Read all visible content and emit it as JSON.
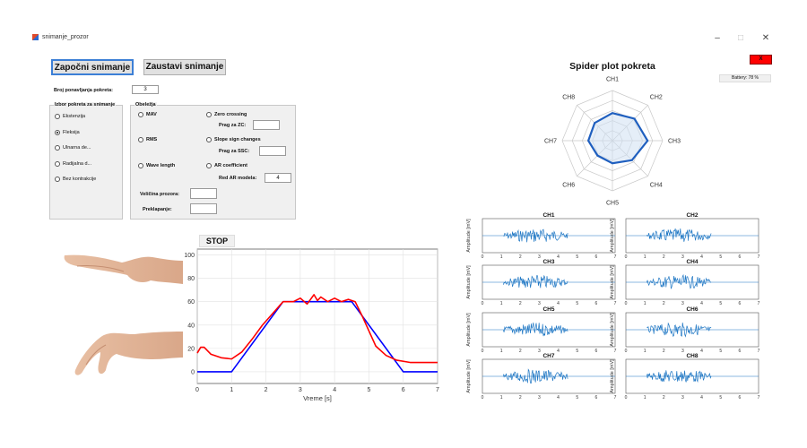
{
  "window": {
    "title": "snimanje_prozor",
    "minimize": "–",
    "maximize": "□",
    "close": "✕"
  },
  "toolbar": {
    "start_label": "Započni snimanje",
    "stop_label": "Zaustavi snimanje"
  },
  "repetitions": {
    "label": "Broj ponavljanja pokreta:",
    "value": "3"
  },
  "movement_panel": {
    "title": "Izbor pokreta za snimanje",
    "options": [
      {
        "label": "Ekstenzija",
        "selected": false
      },
      {
        "label": "Fleksija",
        "selected": true
      },
      {
        "label": "Ulnarna de...",
        "selected": false
      },
      {
        "label": "Radijalna d...",
        "selected": false
      },
      {
        "label": "Bez kontrakcije",
        "selected": false
      }
    ]
  },
  "features_panel": {
    "title": "Obeležja",
    "mav": "MAV",
    "rms": "RMS",
    "wave_length": "Wave length",
    "zero_crossing": "Zero crossing",
    "zc_threshold_label": "Prag za ZC:",
    "zc_threshold_value": "",
    "ssc": "Slope sign changes",
    "ssc_threshold_label": "Prag za SSC:",
    "ssc_threshold_value": "",
    "ar": "AR coefficient",
    "ar_order_label": "Red AR modela:",
    "ar_order_value": "4",
    "window_size_label": "Veličina prozora:",
    "window_size_value": "",
    "overlap_label": "Preklapanje:",
    "overlap_value": ""
  },
  "status": {
    "indicator": "X",
    "battery": "Battery: 78 %",
    "stop_label": "STOP"
  },
  "colors": {
    "radar": "#1f5fbf",
    "emg": "#1f77c4",
    "target": "#0000ff",
    "measured": "#ff0000",
    "indicator": "#ff0000"
  },
  "chart_data": [
    {
      "type": "line",
      "title": "",
      "xlabel": "Vreme [s]",
      "ylabel": "",
      "xlim": [
        0,
        7
      ],
      "ylim": [
        -10,
        105
      ],
      "xticks": [
        0,
        1,
        2,
        3,
        4,
        5,
        6,
        7
      ],
      "yticks": [
        0,
        20,
        40,
        60,
        80,
        100
      ],
      "grid": true,
      "series": [
        {
          "color": "#0000ff",
          "x": [
            0,
            1,
            2.5,
            4.5,
            6,
            7
          ],
          "y": [
            0,
            0,
            60,
            60,
            0,
            0
          ]
        },
        {
          "color": "#ff0000",
          "x": [
            0,
            0.1,
            0.2,
            0.4,
            0.7,
            1.0,
            1.3,
            1.6,
            1.9,
            2.2,
            2.5,
            2.8,
            3.0,
            3.2,
            3.4,
            3.5,
            3.6,
            3.8,
            4.0,
            4.2,
            4.4,
            4.6,
            4.8,
            5.0,
            5.2,
            5.5,
            5.8,
            6.2,
            6.6,
            7.0
          ],
          "y": [
            16,
            21,
            21,
            15,
            12,
            11,
            17,
            28,
            40,
            50,
            60,
            60,
            63,
            58,
            66,
            61,
            64,
            60,
            63,
            60,
            62,
            60,
            48,
            35,
            22,
            14,
            10,
            8,
            8,
            8
          ]
        }
      ]
    },
    {
      "type": "radar",
      "title": "Spider plot pokreta",
      "categories": [
        "CH1",
        "CH2",
        "CH3",
        "CH4",
        "CH5",
        "CH6",
        "CH7",
        "CH8"
      ],
      "values": [
        0.55,
        0.62,
        0.7,
        0.55,
        0.45,
        0.42,
        0.48,
        0.5
      ],
      "rmax": 1,
      "rings": 5
    },
    {
      "type": "line",
      "ylabel": "Amplitude [mV]",
      "xlim": [
        0,
        7
      ],
      "xticks": [
        0,
        1,
        2,
        3,
        4,
        5,
        6,
        7
      ],
      "signal_span": [
        1.1,
        4.5
      ],
      "series": [
        {
          "name": "CH1"
        },
        {
          "name": "CH2"
        },
        {
          "name": "CH3"
        },
        {
          "name": "CH4"
        },
        {
          "name": "CH5"
        },
        {
          "name": "CH6"
        },
        {
          "name": "CH7"
        },
        {
          "name": "CH8"
        }
      ]
    }
  ]
}
